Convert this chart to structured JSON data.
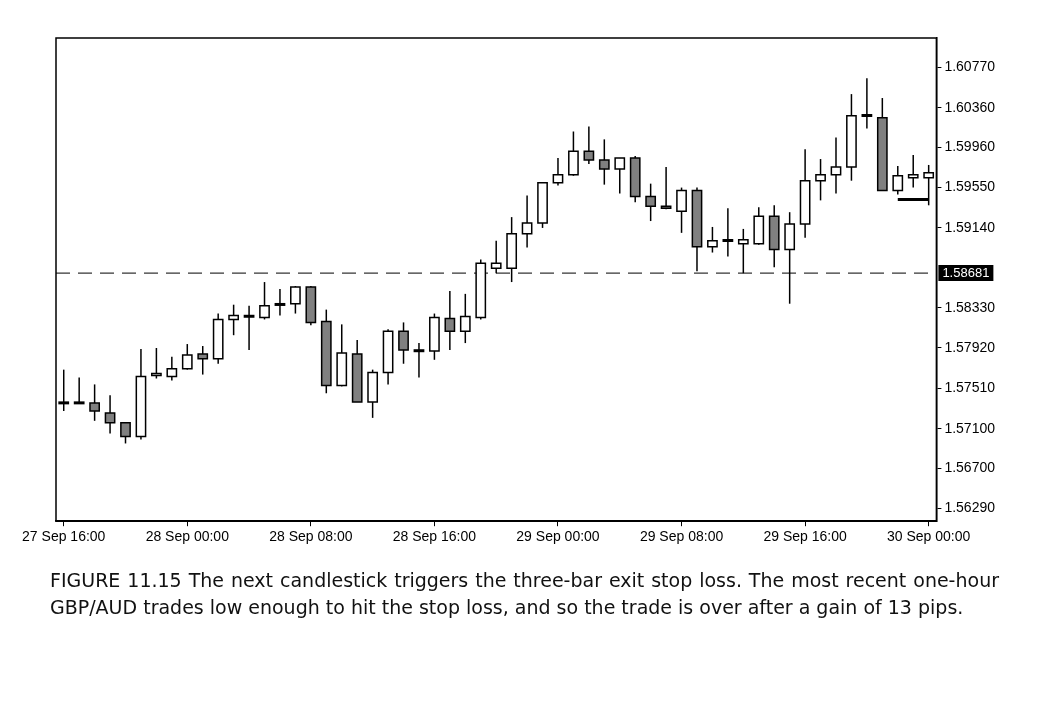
{
  "chart_data": {
    "type": "candlestick",
    "categories": [
      "27 Sep 16:00",
      null,
      null,
      null,
      null,
      null,
      null,
      null,
      "28 Sep 00:00",
      null,
      null,
      null,
      null,
      null,
      null,
      null,
      "28 Sep 08:00",
      null,
      null,
      null,
      null,
      null,
      null,
      null,
      "28 Sep 16:00",
      null,
      null,
      null,
      null,
      null,
      null,
      null,
      "29 Sep 00:00",
      null,
      null,
      null,
      null,
      null,
      null,
      null,
      "29 Sep 08:00",
      null,
      null,
      null,
      null,
      null,
      null,
      null,
      "29 Sep 16:00",
      null,
      null,
      null,
      null,
      null,
      null,
      null,
      "30 Sep 00:00"
    ],
    "ohlc": [
      [
        1.5736,
        1.577,
        1.5728,
        1.5737
      ],
      [
        1.5737,
        1.5762,
        1.5736,
        1.5736
      ],
      [
        1.5736,
        1.5755,
        1.5718,
        1.5728
      ],
      [
        1.5726,
        1.5744,
        1.5705,
        1.5716
      ],
      [
        1.5716,
        1.5716,
        1.5695,
        1.5702
      ],
      [
        1.5702,
        1.5791,
        1.5699,
        1.5763
      ],
      [
        1.5764,
        1.5792,
        1.5761,
        1.5766
      ],
      [
        1.5763,
        1.5783,
        1.5759,
        1.5771
      ],
      [
        1.5771,
        1.5796,
        1.577,
        1.5785
      ],
      [
        1.5786,
        1.5794,
        1.5765,
        1.5781
      ],
      [
        1.5781,
        1.5827,
        1.5776,
        1.5821
      ],
      [
        1.5821,
        1.5836,
        1.5805,
        1.5825
      ],
      [
        1.5824,
        1.5835,
        1.579,
        1.5825
      ],
      [
        1.5823,
        1.5859,
        1.5821,
        1.5835
      ],
      [
        1.5836,
        1.5852,
        1.5825,
        1.5837
      ],
      [
        1.5837,
        1.5855,
        1.5827,
        1.5854
      ],
      [
        1.5854,
        1.5855,
        1.5815,
        1.5818
      ],
      [
        1.5819,
        1.5831,
        1.5746,
        1.5754
      ],
      [
        1.5754,
        1.5816,
        1.5753,
        1.5787
      ],
      [
        1.5786,
        1.58,
        1.5737,
        1.5737
      ],
      [
        1.5737,
        1.577,
        1.5721,
        1.5767
      ],
      [
        1.5767,
        1.5811,
        1.5755,
        1.5809
      ],
      [
        1.5809,
        1.5818,
        1.5776,
        1.579
      ],
      [
        1.579,
        1.5797,
        1.5762,
        1.579
      ],
      [
        1.5789,
        1.5827,
        1.578,
        1.5823
      ],
      [
        1.5822,
        1.585,
        1.579,
        1.5809
      ],
      [
        1.5809,
        1.5847,
        1.5797,
        1.5824
      ],
      [
        1.5823,
        1.5882,
        1.5821,
        1.5878
      ],
      [
        1.5873,
        1.5901,
        1.5868,
        1.5878
      ],
      [
        1.5873,
        1.5925,
        1.5859,
        1.5908
      ],
      [
        1.5908,
        1.5947,
        1.5894,
        1.5919
      ],
      [
        1.5919,
        1.596,
        1.5914,
        1.596
      ],
      [
        1.596,
        1.5985,
        1.5957,
        1.5968
      ],
      [
        1.5968,
        1.6012,
        1.5967,
        1.5992
      ],
      [
        1.5992,
        1.6017,
        1.5979,
        1.5983
      ],
      [
        1.5983,
        1.6004,
        1.5958,
        1.5974
      ],
      [
        1.5974,
        1.5985,
        1.5949,
        1.5985
      ],
      [
        1.5985,
        1.5987,
        1.594,
        1.5946
      ],
      [
        1.5946,
        1.5959,
        1.5921,
        1.5936
      ],
      [
        1.5936,
        1.5976,
        1.5933,
        1.5934
      ],
      [
        1.5931,
        1.5955,
        1.5909,
        1.5952
      ],
      [
        1.5952,
        1.5955,
        1.587,
        1.5895
      ],
      [
        1.5895,
        1.5915,
        1.5889,
        1.5901
      ],
      [
        1.5902,
        1.5934,
        1.5885,
        1.5901
      ],
      [
        1.5898,
        1.5913,
        1.5868,
        1.5902
      ],
      [
        1.5898,
        1.5935,
        1.5897,
        1.5926
      ],
      [
        1.5926,
        1.5937,
        1.5874,
        1.5892
      ],
      [
        1.5892,
        1.593,
        1.5837,
        1.5918
      ],
      [
        1.5918,
        1.5994,
        1.5904,
        1.5962
      ],
      [
        1.5962,
        1.5984,
        1.5942,
        1.5968
      ],
      [
        1.5968,
        1.6006,
        1.5949,
        1.5976
      ],
      [
        1.5976,
        1.605,
        1.5962,
        1.6028
      ],
      [
        1.6028,
        1.6066,
        1.6015,
        1.6029
      ],
      [
        1.6026,
        1.6046,
        1.5952,
        1.5952
      ],
      [
        1.5952,
        1.5977,
        1.5948,
        1.5967
      ],
      [
        1.5965,
        1.5988,
        1.5955,
        1.5968
      ],
      [
        1.5965,
        1.5978,
        1.5937,
        1.597
      ]
    ],
    "colors": [
      "#ffffff",
      "#808080",
      "#808080",
      "#808080",
      "#808080",
      "#ffffff",
      "#ffffff",
      "#ffffff",
      "#ffffff",
      "#808080",
      "#ffffff",
      "#ffffff",
      "#ffffff",
      "#ffffff",
      "#ffffff",
      "#ffffff",
      "#808080",
      "#808080",
      "#ffffff",
      "#808080",
      "#ffffff",
      "#ffffff",
      "#808080",
      "#808080",
      "#ffffff",
      "#808080",
      "#ffffff",
      "#ffffff",
      "#ffffff",
      "#ffffff",
      "#ffffff",
      "#ffffff",
      "#ffffff",
      "#ffffff",
      "#808080",
      "#808080",
      "#ffffff",
      "#808080",
      "#808080",
      "#808080",
      "#ffffff",
      "#808080",
      "#ffffff",
      "#808080",
      "#ffffff",
      "#ffffff",
      "#808080",
      "#ffffff",
      "#ffffff",
      "#ffffff",
      "#ffffff",
      "#ffffff",
      "#ffffff",
      "#808080",
      "#ffffff",
      "#ffffff",
      "#ffffff"
    ],
    "series": [
      {
        "type": "line",
        "values": [
          null,
          null,
          null,
          null,
          null,
          null,
          null,
          null,
          null,
          null,
          null,
          null,
          null,
          null,
          null,
          null,
          null,
          null,
          null,
          null,
          null,
          null,
          null,
          null,
          null,
          null,
          null,
          null,
          null,
          null,
          null,
          null,
          null,
          null,
          null,
          null,
          null,
          null,
          null,
          null,
          null,
          null,
          null,
          null,
          null,
          null,
          null,
          null,
          null,
          null,
          null,
          null,
          null,
          null,
          1.5943,
          1.5943,
          1.5943
        ],
        "color": "#000000"
      }
    ],
    "ylim": [
      1.5616,
      1.6107
    ],
    "yticks": [
      {
        "value": 1.5629,
        "label": "1.56290"
      },
      {
        "value": 1.567,
        "label": "1.56700"
      },
      {
        "value": 1.571,
        "label": "1.57100"
      },
      {
        "value": 1.5751,
        "label": "1.57510"
      },
      {
        "value": 1.5792,
        "label": "1.57920"
      },
      {
        "value": 1.5833,
        "label": "1.58330"
      },
      {
        "value": 1.5914,
        "label": "1.59140"
      },
      {
        "value": 1.5955,
        "label": "1.59550"
      },
      {
        "value": 1.5996,
        "label": "1.59960"
      },
      {
        "value": 1.6036,
        "label": "1.60360"
      },
      {
        "value": 1.6077,
        "label": "1.60770"
      }
    ],
    "ref_lines": [
      {
        "axis": "y",
        "value": 1.58681,
        "label": "1.58681",
        "color": "#000000",
        "line_style": "dashed"
      }
    ],
    "grid": false,
    "legend": false,
    "marker": "none",
    "annotations": [
      "FIGURE 11.15 The next candlestick triggers the three-bar exit stop loss. The most recent one-hour GBP/AUD trades low enough to hit the stop loss, and so the trade is over after a gain of 13 pips."
    ]
  }
}
